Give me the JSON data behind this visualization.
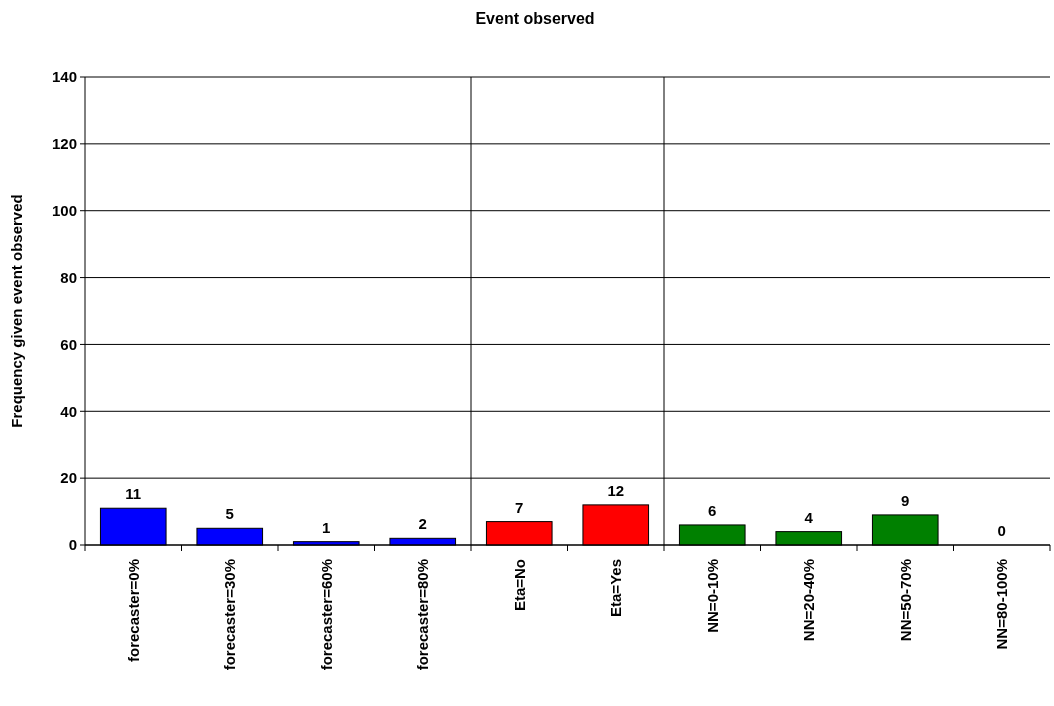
{
  "chart_data": {
    "type": "bar",
    "title": "Event observed",
    "ylabel": "Frequency given event observed",
    "categories": [
      "forecaster=0%",
      "forecaster=30%",
      "forecaster=60%",
      "forecaster=80%",
      "Eta=No",
      "Eta=Yes",
      "NN=0-10%",
      "NN=20-40%",
      "NN=50-70%",
      "NN=80-100%"
    ],
    "values": [
      11,
      5,
      1,
      2,
      7,
      12,
      6,
      4,
      9,
      0
    ],
    "colors": [
      "#0000ff",
      "#0000ff",
      "#0000ff",
      "#0000ff",
      "#ff0000",
      "#ff0000",
      "#008000",
      "#008000",
      "#008000",
      "#008000"
    ],
    "ylim": [
      0,
      140
    ],
    "yticks": [
      0,
      20,
      40,
      60,
      80,
      100,
      120,
      140
    ],
    "grid": "y",
    "data_labels": true
  }
}
